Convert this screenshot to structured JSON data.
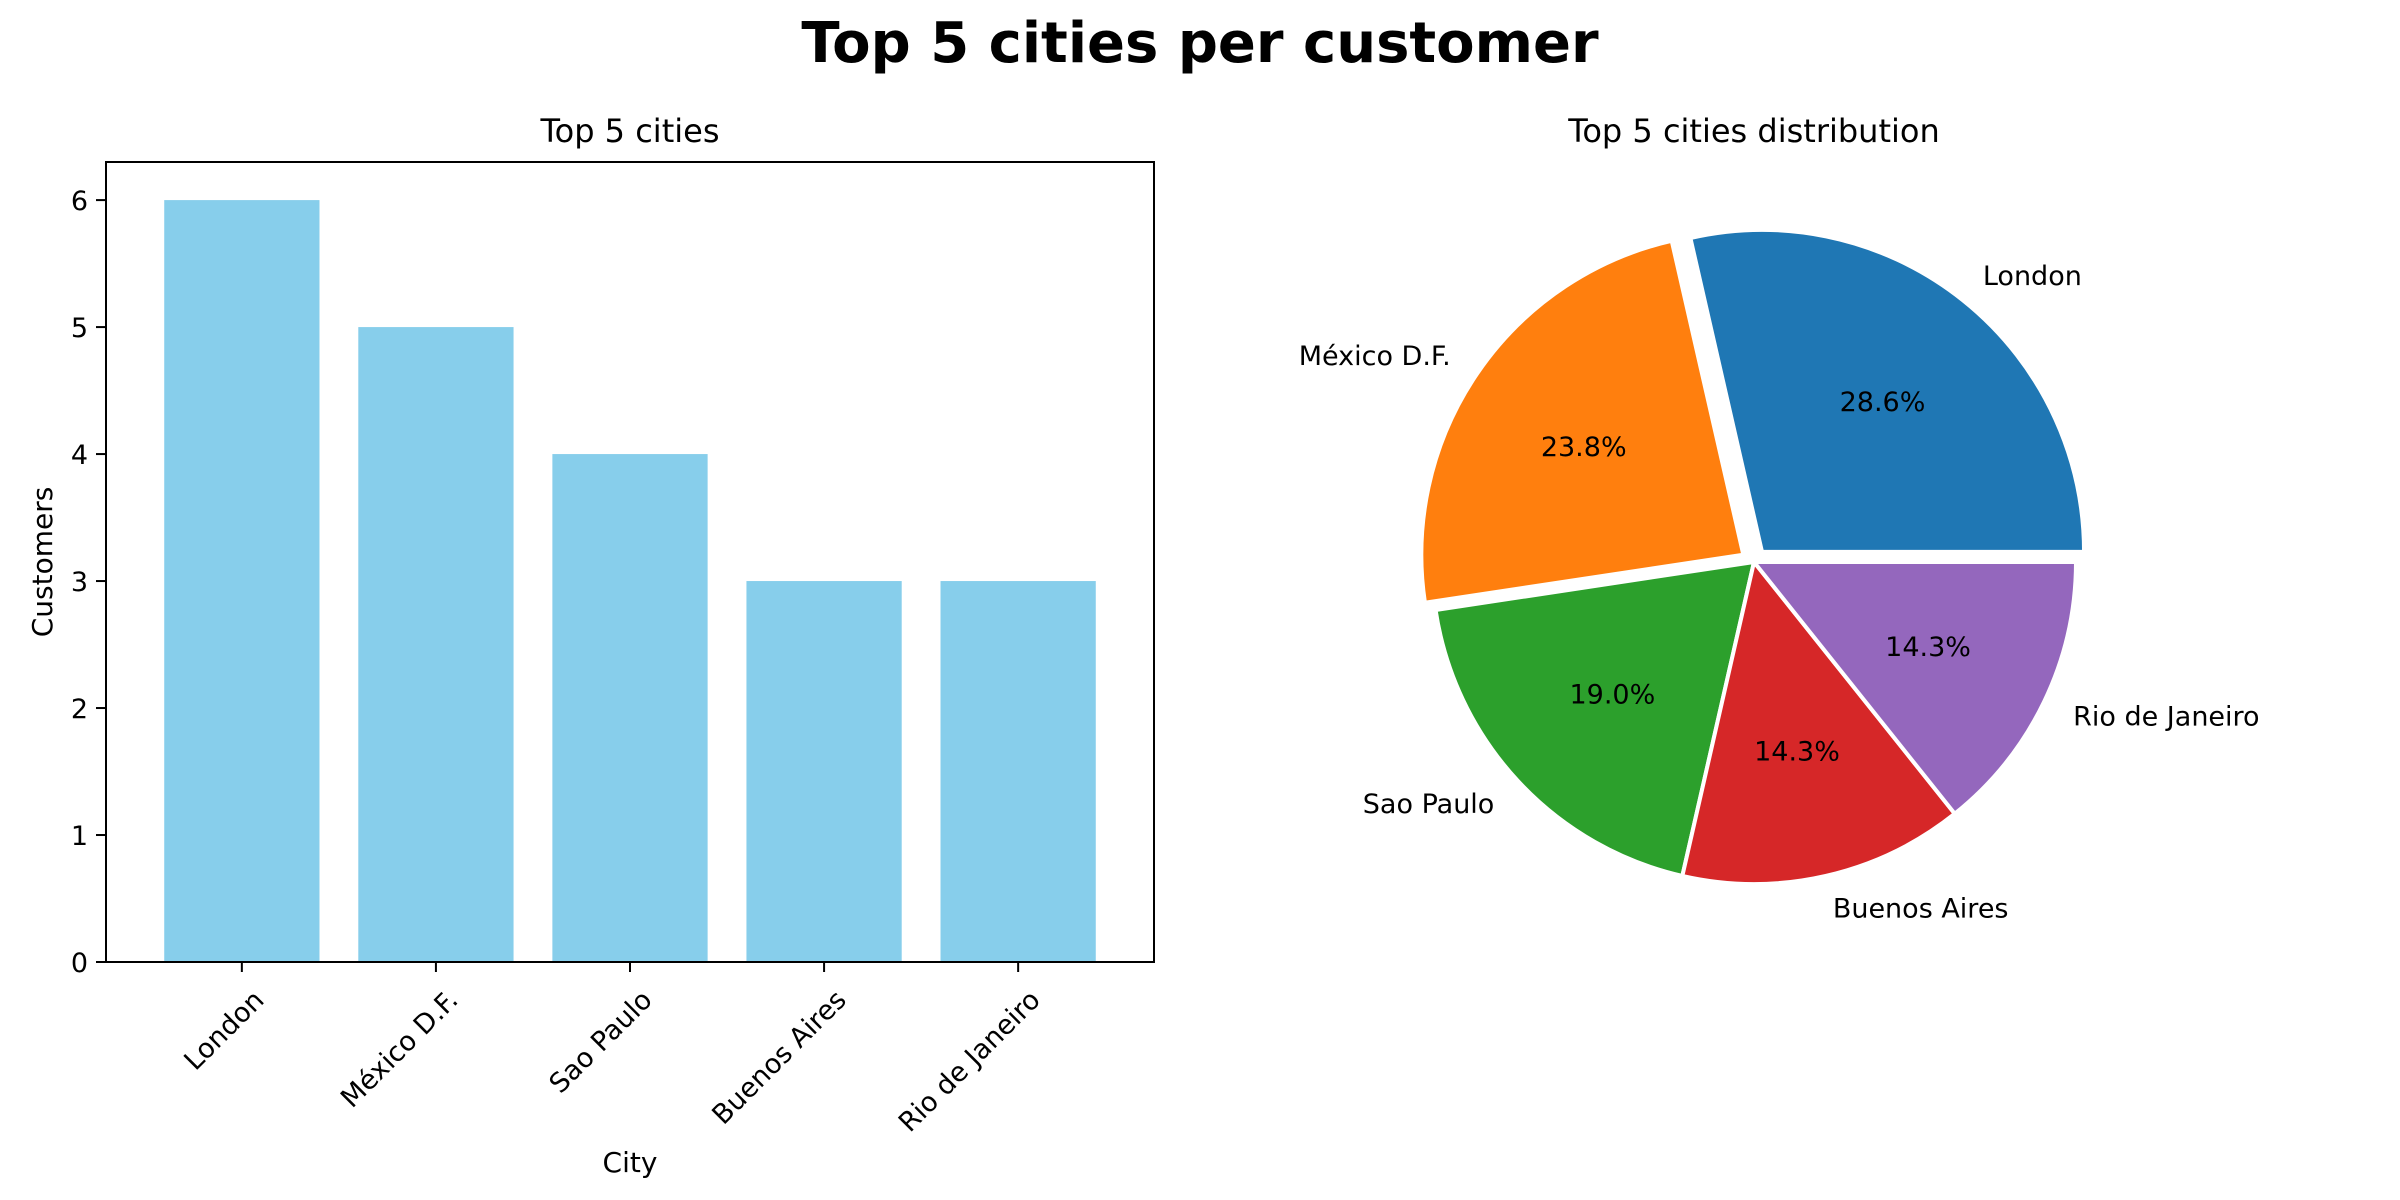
{
  "title": "Top 5 cities per customer",
  "chart_data": [
    {
      "type": "bar",
      "title": "Top 5 cities",
      "xlabel": "City",
      "ylabel": "Customers",
      "categories": [
        "London",
        "México D.F.",
        "Sao Paulo",
        "Buenos Aires",
        "Rio de Janeiro"
      ],
      "values": [
        6,
        5,
        4,
        3,
        3
      ],
      "ylim": [
        0,
        6.3
      ],
      "yticks": [
        "0",
        "1",
        "2",
        "3",
        "4",
        "5",
        "6"
      ],
      "color": "#87ceeb",
      "grid": false
    },
    {
      "type": "pie",
      "title": "Top 5 cities distribution",
      "labels": [
        "London",
        "México D.F.",
        "Sao Paulo",
        "Buenos Aires",
        "Rio de Janeiro"
      ],
      "values": [
        6,
        5,
        4,
        3,
        3
      ],
      "percent_labels": [
        "28.6%",
        "23.8%",
        "19.0%",
        "14.3%",
        "14.3%"
      ],
      "colors": [
        "#1f77b4",
        "#ff7f0e",
        "#2ca02c",
        "#d62728",
        "#9467bd"
      ],
      "exploded": [
        "London",
        "México D.F."
      ]
    }
  ]
}
